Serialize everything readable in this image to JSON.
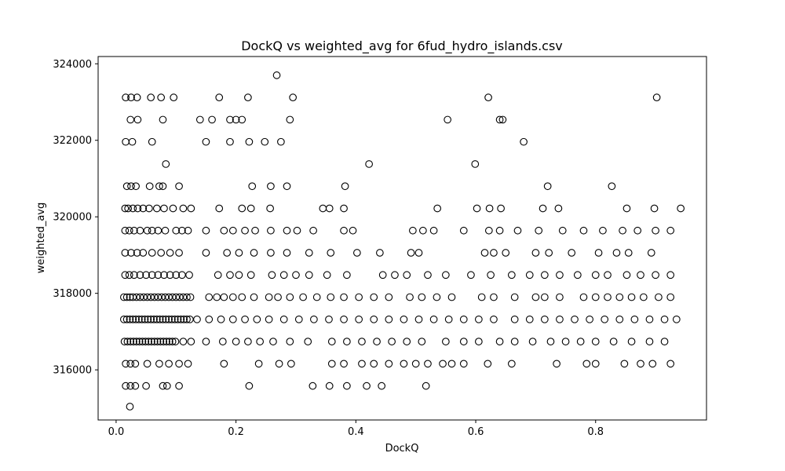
{
  "chart_data": {
    "type": "scatter",
    "title": "DockQ vs weighted_avg for 6fud_hydro_islands.csv",
    "xlabel": "DockQ",
    "ylabel": "weighted_avg",
    "xlim": [
      -0.03,
      0.985
    ],
    "ylim": [
      314690,
      324190
    ],
    "xticks": [
      0.0,
      0.2,
      0.4,
      0.6,
      0.8
    ],
    "xtick_labels": [
      "0.0",
      "0.2",
      "0.4",
      "0.6",
      "0.8"
    ],
    "yticks": [
      316000,
      318000,
      320000,
      322000,
      324000
    ],
    "ytick_labels": [
      "316000",
      "318000",
      "320000",
      "322000",
      "324000"
    ],
    "marker": "open-circle",
    "marker_color": "#000000",
    "grid": false,
    "points": [
      [
        0.023,
        315040
      ],
      [
        0.268,
        323700
      ],
      [
        0.621,
        323120
      ],
      [
        0.902,
        323120
      ],
      [
        0.016,
        323120
      ],
      [
        0.025,
        323120
      ],
      [
        0.035,
        323120
      ],
      [
        0.058,
        323120
      ],
      [
        0.075,
        323120
      ],
      [
        0.096,
        323120
      ],
      [
        0.172,
        323120
      ],
      [
        0.22,
        323120
      ],
      [
        0.295,
        323120
      ],
      [
        0.024,
        322540
      ],
      [
        0.036,
        322540
      ],
      [
        0.078,
        322540
      ],
      [
        0.14,
        322540
      ],
      [
        0.16,
        322540
      ],
      [
        0.19,
        322540
      ],
      [
        0.2,
        322540
      ],
      [
        0.21,
        322540
      ],
      [
        0.29,
        322540
      ],
      [
        0.553,
        322540
      ],
      [
        0.64,
        322540
      ],
      [
        0.645,
        322540
      ],
      [
        0.016,
        321960
      ],
      [
        0.027,
        321960
      ],
      [
        0.06,
        321960
      ],
      [
        0.15,
        321960
      ],
      [
        0.19,
        321960
      ],
      [
        0.222,
        321960
      ],
      [
        0.248,
        321960
      ],
      [
        0.275,
        321960
      ],
      [
        0.68,
        321960
      ],
      [
        0.083,
        321380
      ],
      [
        0.422,
        321380
      ],
      [
        0.599,
        321380
      ],
      [
        0.018,
        320800
      ],
      [
        0.025,
        320800
      ],
      [
        0.033,
        320800
      ],
      [
        0.056,
        320800
      ],
      [
        0.072,
        320800
      ],
      [
        0.078,
        320800
      ],
      [
        0.105,
        320800
      ],
      [
        0.227,
        320800
      ],
      [
        0.258,
        320800
      ],
      [
        0.285,
        320800
      ],
      [
        0.382,
        320800
      ],
      [
        0.72,
        320800
      ],
      [
        0.827,
        320800
      ],
      [
        0.015,
        320220
      ],
      [
        0.02,
        320220
      ],
      [
        0.028,
        320220
      ],
      [
        0.036,
        320220
      ],
      [
        0.045,
        320220
      ],
      [
        0.055,
        320220
      ],
      [
        0.068,
        320220
      ],
      [
        0.08,
        320220
      ],
      [
        0.095,
        320220
      ],
      [
        0.112,
        320220
      ],
      [
        0.125,
        320220
      ],
      [
        0.172,
        320220
      ],
      [
        0.21,
        320220
      ],
      [
        0.225,
        320220
      ],
      [
        0.257,
        320220
      ],
      [
        0.345,
        320220
      ],
      [
        0.356,
        320220
      ],
      [
        0.38,
        320220
      ],
      [
        0.536,
        320220
      ],
      [
        0.602,
        320220
      ],
      [
        0.623,
        320220
      ],
      [
        0.642,
        320220
      ],
      [
        0.712,
        320220
      ],
      [
        0.738,
        320220
      ],
      [
        0.852,
        320220
      ],
      [
        0.898,
        320220
      ],
      [
        0.942,
        320220
      ],
      [
        0.015,
        319640
      ],
      [
        0.022,
        319640
      ],
      [
        0.03,
        319640
      ],
      [
        0.04,
        319640
      ],
      [
        0.052,
        319640
      ],
      [
        0.06,
        319640
      ],
      [
        0.07,
        319640
      ],
      [
        0.082,
        319640
      ],
      [
        0.1,
        319640
      ],
      [
        0.11,
        319640
      ],
      [
        0.12,
        319640
      ],
      [
        0.15,
        319640
      ],
      [
        0.18,
        319640
      ],
      [
        0.195,
        319640
      ],
      [
        0.215,
        319640
      ],
      [
        0.232,
        319640
      ],
      [
        0.258,
        319640
      ],
      [
        0.285,
        319640
      ],
      [
        0.302,
        319640
      ],
      [
        0.329,
        319640
      ],
      [
        0.38,
        319640
      ],
      [
        0.395,
        319640
      ],
      [
        0.495,
        319640
      ],
      [
        0.512,
        319640
      ],
      [
        0.53,
        319640
      ],
      [
        0.58,
        319640
      ],
      [
        0.622,
        319640
      ],
      [
        0.64,
        319640
      ],
      [
        0.67,
        319640
      ],
      [
        0.705,
        319640
      ],
      [
        0.745,
        319640
      ],
      [
        0.78,
        319640
      ],
      [
        0.812,
        319640
      ],
      [
        0.845,
        319640
      ],
      [
        0.87,
        319640
      ],
      [
        0.9,
        319640
      ],
      [
        0.925,
        319640
      ],
      [
        0.015,
        319060
      ],
      [
        0.025,
        319060
      ],
      [
        0.035,
        319060
      ],
      [
        0.045,
        319060
      ],
      [
        0.06,
        319060
      ],
      [
        0.075,
        319060
      ],
      [
        0.09,
        319060
      ],
      [
        0.105,
        319060
      ],
      [
        0.15,
        319060
      ],
      [
        0.185,
        319060
      ],
      [
        0.205,
        319060
      ],
      [
        0.23,
        319060
      ],
      [
        0.258,
        319060
      ],
      [
        0.285,
        319060
      ],
      [
        0.322,
        319060
      ],
      [
        0.358,
        319060
      ],
      [
        0.402,
        319060
      ],
      [
        0.44,
        319060
      ],
      [
        0.492,
        319060
      ],
      [
        0.505,
        319060
      ],
      [
        0.615,
        319060
      ],
      [
        0.63,
        319060
      ],
      [
        0.65,
        319060
      ],
      [
        0.7,
        319060
      ],
      [
        0.722,
        319060
      ],
      [
        0.76,
        319060
      ],
      [
        0.805,
        319060
      ],
      [
        0.835,
        319060
      ],
      [
        0.855,
        319060
      ],
      [
        0.893,
        319060
      ],
      [
        0.015,
        318480
      ],
      [
        0.022,
        318480
      ],
      [
        0.03,
        318480
      ],
      [
        0.04,
        318480
      ],
      [
        0.05,
        318480
      ],
      [
        0.06,
        318480
      ],
      [
        0.07,
        318480
      ],
      [
        0.08,
        318480
      ],
      [
        0.09,
        318480
      ],
      [
        0.1,
        318480
      ],
      [
        0.11,
        318480
      ],
      [
        0.122,
        318480
      ],
      [
        0.17,
        318480
      ],
      [
        0.19,
        318480
      ],
      [
        0.205,
        318480
      ],
      [
        0.225,
        318480
      ],
      [
        0.26,
        318480
      ],
      [
        0.28,
        318480
      ],
      [
        0.3,
        318480
      ],
      [
        0.322,
        318480
      ],
      [
        0.352,
        318480
      ],
      [
        0.385,
        318480
      ],
      [
        0.445,
        318480
      ],
      [
        0.465,
        318480
      ],
      [
        0.485,
        318480
      ],
      [
        0.52,
        318480
      ],
      [
        0.55,
        318480
      ],
      [
        0.592,
        318480
      ],
      [
        0.625,
        318480
      ],
      [
        0.66,
        318480
      ],
      [
        0.69,
        318480
      ],
      [
        0.715,
        318480
      ],
      [
        0.74,
        318480
      ],
      [
        0.77,
        318480
      ],
      [
        0.8,
        318480
      ],
      [
        0.82,
        318480
      ],
      [
        0.852,
        318480
      ],
      [
        0.875,
        318480
      ],
      [
        0.9,
        318480
      ],
      [
        0.925,
        318480
      ],
      [
        0.013,
        317900
      ],
      [
        0.018,
        317900
      ],
      [
        0.023,
        317900
      ],
      [
        0.028,
        317900
      ],
      [
        0.034,
        317900
      ],
      [
        0.04,
        317900
      ],
      [
        0.046,
        317900
      ],
      [
        0.052,
        317900
      ],
      [
        0.058,
        317900
      ],
      [
        0.064,
        317900
      ],
      [
        0.07,
        317900
      ],
      [
        0.076,
        317900
      ],
      [
        0.082,
        317900
      ],
      [
        0.088,
        317900
      ],
      [
        0.094,
        317900
      ],
      [
        0.1,
        317900
      ],
      [
        0.106,
        317900
      ],
      [
        0.112,
        317900
      ],
      [
        0.118,
        317900
      ],
      [
        0.124,
        317900
      ],
      [
        0.155,
        317900
      ],
      [
        0.168,
        317900
      ],
      [
        0.18,
        317900
      ],
      [
        0.195,
        317900
      ],
      [
        0.21,
        317900
      ],
      [
        0.23,
        317900
      ],
      [
        0.255,
        317900
      ],
      [
        0.27,
        317900
      ],
      [
        0.29,
        317900
      ],
      [
        0.312,
        317900
      ],
      [
        0.335,
        317900
      ],
      [
        0.358,
        317900
      ],
      [
        0.38,
        317900
      ],
      [
        0.405,
        317900
      ],
      [
        0.43,
        317900
      ],
      [
        0.455,
        317900
      ],
      [
        0.49,
        317900
      ],
      [
        0.51,
        317900
      ],
      [
        0.535,
        317900
      ],
      [
        0.56,
        317900
      ],
      [
        0.61,
        317900
      ],
      [
        0.63,
        317900
      ],
      [
        0.665,
        317900
      ],
      [
        0.7,
        317900
      ],
      [
        0.715,
        317900
      ],
      [
        0.74,
        317900
      ],
      [
        0.78,
        317900
      ],
      [
        0.8,
        317900
      ],
      [
        0.82,
        317900
      ],
      [
        0.84,
        317900
      ],
      [
        0.86,
        317900
      ],
      [
        0.88,
        317900
      ],
      [
        0.905,
        317900
      ],
      [
        0.925,
        317900
      ],
      [
        0.013,
        317320
      ],
      [
        0.018,
        317320
      ],
      [
        0.023,
        317320
      ],
      [
        0.028,
        317320
      ],
      [
        0.033,
        317320
      ],
      [
        0.038,
        317320
      ],
      [
        0.043,
        317320
      ],
      [
        0.048,
        317320
      ],
      [
        0.053,
        317320
      ],
      [
        0.058,
        317320
      ],
      [
        0.063,
        317320
      ],
      [
        0.068,
        317320
      ],
      [
        0.073,
        317320
      ],
      [
        0.078,
        317320
      ],
      [
        0.083,
        317320
      ],
      [
        0.088,
        317320
      ],
      [
        0.093,
        317320
      ],
      [
        0.098,
        317320
      ],
      [
        0.103,
        317320
      ],
      [
        0.108,
        317320
      ],
      [
        0.113,
        317320
      ],
      [
        0.118,
        317320
      ],
      [
        0.123,
        317320
      ],
      [
        0.135,
        317320
      ],
      [
        0.155,
        317320
      ],
      [
        0.175,
        317320
      ],
      [
        0.195,
        317320
      ],
      [
        0.215,
        317320
      ],
      [
        0.235,
        317320
      ],
      [
        0.255,
        317320
      ],
      [
        0.28,
        317320
      ],
      [
        0.305,
        317320
      ],
      [
        0.33,
        317320
      ],
      [
        0.355,
        317320
      ],
      [
        0.38,
        317320
      ],
      [
        0.405,
        317320
      ],
      [
        0.43,
        317320
      ],
      [
        0.455,
        317320
      ],
      [
        0.48,
        317320
      ],
      [
        0.505,
        317320
      ],
      [
        0.53,
        317320
      ],
      [
        0.555,
        317320
      ],
      [
        0.58,
        317320
      ],
      [
        0.605,
        317320
      ],
      [
        0.63,
        317320
      ],
      [
        0.665,
        317320
      ],
      [
        0.69,
        317320
      ],
      [
        0.715,
        317320
      ],
      [
        0.74,
        317320
      ],
      [
        0.765,
        317320
      ],
      [
        0.79,
        317320
      ],
      [
        0.815,
        317320
      ],
      [
        0.84,
        317320
      ],
      [
        0.865,
        317320
      ],
      [
        0.89,
        317320
      ],
      [
        0.915,
        317320
      ],
      [
        0.935,
        317320
      ],
      [
        0.014,
        316740
      ],
      [
        0.019,
        316740
      ],
      [
        0.024,
        316740
      ],
      [
        0.029,
        316740
      ],
      [
        0.034,
        316740
      ],
      [
        0.039,
        316740
      ],
      [
        0.044,
        316740
      ],
      [
        0.049,
        316740
      ],
      [
        0.054,
        316740
      ],
      [
        0.059,
        316740
      ],
      [
        0.064,
        316740
      ],
      [
        0.069,
        316740
      ],
      [
        0.074,
        316740
      ],
      [
        0.079,
        316740
      ],
      [
        0.084,
        316740
      ],
      [
        0.089,
        316740
      ],
      [
        0.094,
        316740
      ],
      [
        0.099,
        316740
      ],
      [
        0.112,
        316740
      ],
      [
        0.125,
        316740
      ],
      [
        0.15,
        316740
      ],
      [
        0.178,
        316740
      ],
      [
        0.2,
        316740
      ],
      [
        0.22,
        316740
      ],
      [
        0.24,
        316740
      ],
      [
        0.262,
        316740
      ],
      [
        0.29,
        316740
      ],
      [
        0.32,
        316740
      ],
      [
        0.36,
        316740
      ],
      [
        0.385,
        316740
      ],
      [
        0.41,
        316740
      ],
      [
        0.435,
        316740
      ],
      [
        0.46,
        316740
      ],
      [
        0.485,
        316740
      ],
      [
        0.51,
        316740
      ],
      [
        0.55,
        316740
      ],
      [
        0.58,
        316740
      ],
      [
        0.605,
        316740
      ],
      [
        0.64,
        316740
      ],
      [
        0.665,
        316740
      ],
      [
        0.695,
        316740
      ],
      [
        0.725,
        316740
      ],
      [
        0.75,
        316740
      ],
      [
        0.775,
        316740
      ],
      [
        0.8,
        316740
      ],
      [
        0.83,
        316740
      ],
      [
        0.86,
        316740
      ],
      [
        0.89,
        316740
      ],
      [
        0.915,
        316740
      ],
      [
        0.016,
        316160
      ],
      [
        0.024,
        316160
      ],
      [
        0.032,
        316160
      ],
      [
        0.052,
        316160
      ],
      [
        0.072,
        316160
      ],
      [
        0.088,
        316160
      ],
      [
        0.105,
        316160
      ],
      [
        0.12,
        316160
      ],
      [
        0.18,
        316160
      ],
      [
        0.238,
        316160
      ],
      [
        0.272,
        316160
      ],
      [
        0.292,
        316160
      ],
      [
        0.36,
        316160
      ],
      [
        0.38,
        316160
      ],
      [
        0.41,
        316160
      ],
      [
        0.43,
        316160
      ],
      [
        0.455,
        316160
      ],
      [
        0.48,
        316160
      ],
      [
        0.5,
        316160
      ],
      [
        0.52,
        316160
      ],
      [
        0.545,
        316160
      ],
      [
        0.56,
        316160
      ],
      [
        0.58,
        316160
      ],
      [
        0.62,
        316160
      ],
      [
        0.66,
        316160
      ],
      [
        0.735,
        316160
      ],
      [
        0.785,
        316160
      ],
      [
        0.8,
        316160
      ],
      [
        0.848,
        316160
      ],
      [
        0.875,
        316160
      ],
      [
        0.895,
        316160
      ],
      [
        0.925,
        316160
      ],
      [
        0.016,
        315580
      ],
      [
        0.024,
        315580
      ],
      [
        0.032,
        315580
      ],
      [
        0.05,
        315580
      ],
      [
        0.078,
        315580
      ],
      [
        0.085,
        315580
      ],
      [
        0.105,
        315580
      ],
      [
        0.222,
        315580
      ],
      [
        0.328,
        315580
      ],
      [
        0.356,
        315580
      ],
      [
        0.385,
        315580
      ],
      [
        0.418,
        315580
      ],
      [
        0.443,
        315580
      ],
      [
        0.517,
        315580
      ]
    ]
  }
}
